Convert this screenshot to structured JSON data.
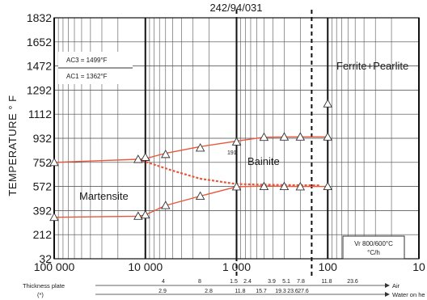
{
  "chart_data": {
    "type": "line",
    "title": "242/94/031",
    "ylabel": "TEMPERATURE ° F",
    "y_ticks": [
      "1832",
      "1652",
      "1472",
      "1292",
      "1112",
      "932",
      "752",
      "572",
      "392",
      "212",
      "32"
    ],
    "ylim": [
      32,
      1832
    ],
    "x_scale": "log-reversed",
    "x_ticks": [
      {
        "value": 100000,
        "label": "100 000"
      },
      {
        "value": 10000,
        "label": "10 000"
      },
      {
        "value": 1000,
        "label": "1 000"
      },
      {
        "value": 100,
        "label": "100"
      },
      {
        "value": 10,
        "label": "10"
      }
    ],
    "xlim": [
      100000,
      10
    ],
    "annotations": {
      "ac3": "AC3 = 1499°F",
      "ac1": "AC1 = 1362°F",
      "ferrite_pearlite": "Ferrite+Pearlite",
      "bainite": "Bainite",
      "martensite": "Martensite",
      "hardness": "191",
      "legend_box_line1": "Vr 800/600°C",
      "legend_box_line2": "°C/h"
    },
    "series": [
      {
        "color": "#e8573a",
        "points": [
          [
            100000,
            752
          ],
          [
            12000,
            775
          ],
          [
            10000,
            780
          ],
          [
            6000,
            820
          ],
          [
            2500,
            870
          ],
          [
            1000,
            910
          ],
          [
            500,
            940
          ],
          [
            250,
            942
          ],
          [
            100,
            942
          ]
        ]
      },
      {
        "color": "#e8573a",
        "points": [
          [
            100000,
            342
          ],
          [
            12000,
            350
          ],
          [
            10000,
            360
          ],
          [
            6000,
            430
          ],
          [
            2500,
            500
          ],
          [
            1000,
            570
          ],
          [
            500,
            575
          ],
          [
            250,
            572
          ],
          [
            100,
            572
          ]
        ]
      },
      {
        "color": "#e8573a",
        "dashed": true,
        "points": [
          [
            12000,
            775
          ],
          [
            5000,
            690
          ],
          [
            2500,
            630
          ],
          [
            1000,
            590
          ],
          [
            500,
            585
          ],
          [
            250,
            582
          ],
          [
            120,
            580
          ]
        ]
      }
    ],
    "markers": [
      [
        100000,
        752
      ],
      [
        12000,
        775
      ],
      [
        10000,
        790
      ],
      [
        6000,
        812
      ],
      [
        2500,
        860
      ],
      [
        1000,
        905
      ],
      [
        500,
        940
      ],
      [
        300,
        942
      ],
      [
        200,
        942
      ],
      [
        100,
        942
      ],
      [
        100000,
        342
      ],
      [
        12000,
        350
      ],
      [
        10000,
        360
      ],
      [
        6000,
        430
      ],
      [
        2500,
        500
      ],
      [
        1000,
        570
      ],
      [
        500,
        572
      ],
      [
        300,
        572
      ],
      [
        200,
        570
      ],
      [
        100,
        572
      ],
      [
        100,
        1190
      ]
    ],
    "thickness_plate": {
      "row1_label": "Thickness plate",
      "row2_label": "(*)",
      "air_label": "Air",
      "water_label": "Water on he",
      "row1_values": [
        "4",
        "8",
        "1.5",
        "2.4",
        "3.9",
        "5.1",
        "7.8",
        "11.8",
        "23.6"
      ],
      "row2_values": [
        "2.9",
        "2.8",
        "11.8",
        "15.7",
        "19.3",
        "23.6",
        "27.6"
      ]
    }
  }
}
